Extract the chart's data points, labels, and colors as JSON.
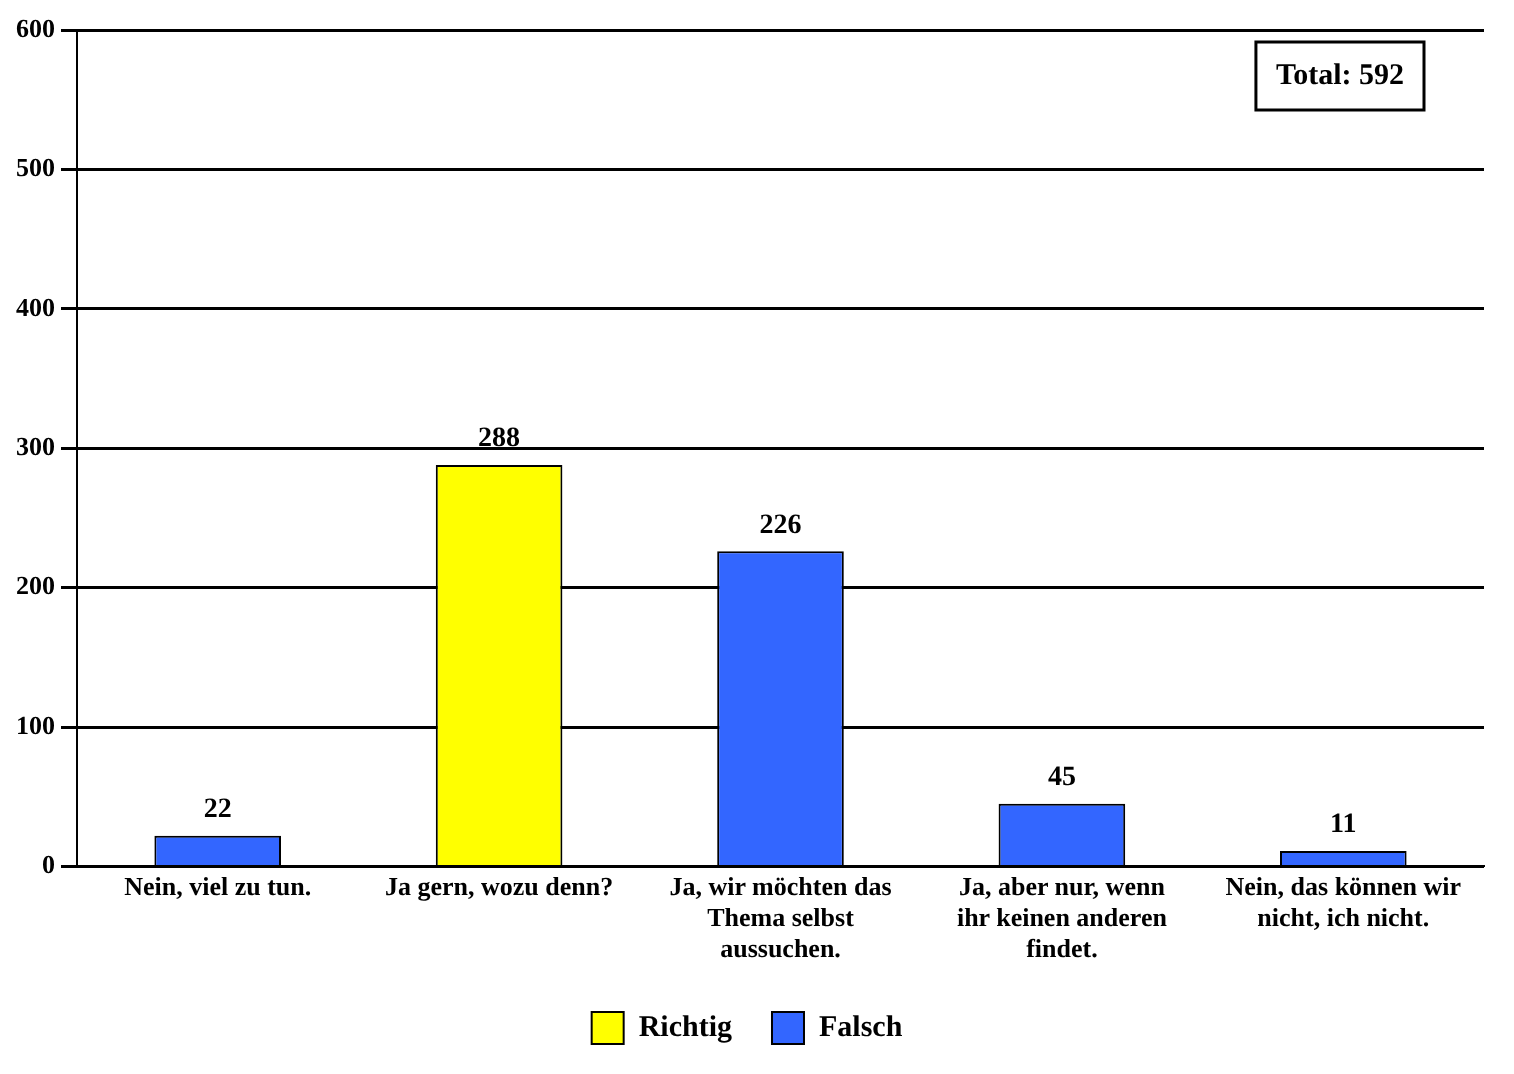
{
  "chart_data": {
    "type": "bar",
    "categories": [
      "Nein, viel zu tun.",
      "Ja gern, wozu denn?",
      "Ja, wir möchten das Thema selbst aussuchen.",
      "Ja, aber nur, wenn ihr keinen anderen findet.",
      "Nein, das können wir nicht, ich nicht."
    ],
    "series": [
      {
        "name": "Richtig",
        "color": "#ffff00",
        "values": [
          null,
          288,
          null,
          null,
          null
        ]
      },
      {
        "name": "Falsch",
        "color": "#3366ff",
        "values": [
          22,
          null,
          226,
          45,
          11
        ]
      }
    ],
    "stacked": true,
    "ylim": [
      0,
      600
    ],
    "yticks": [
      0,
      100,
      200,
      300,
      400,
      500,
      600
    ],
    "grid": "y",
    "legend": "bottom",
    "data_labels": true,
    "annotations": [
      "Total: 592"
    ]
  }
}
